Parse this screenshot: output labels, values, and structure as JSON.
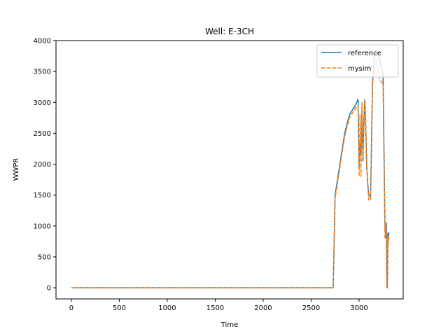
{
  "chart_data": {
    "type": "line",
    "title": "Well: E-3CH",
    "xlabel": "Time",
    "ylabel": "WWPR",
    "xlim": [
      -160,
      3460
    ],
    "ylim": [
      -180,
      4000
    ],
    "xticks": [
      0,
      500,
      1000,
      1500,
      2000,
      2500,
      3000
    ],
    "yticks": [
      0,
      500,
      1000,
      1500,
      2000,
      2500,
      3000,
      3500,
      4000
    ],
    "grid": false,
    "legend_position": "upper right",
    "series": [
      {
        "name": "reference",
        "color": "#1f77b4",
        "style": "solid",
        "x": [
          0,
          500,
          1000,
          1500,
          2000,
          2500,
          2700,
          2730,
          2750,
          2800,
          2850,
          2900,
          2960,
          2990,
          3000,
          3010,
          3020,
          3030,
          3040,
          3050,
          3060,
          3070,
          3080,
          3090,
          3100,
          3120,
          3140,
          3160,
          3180,
          3200,
          3220,
          3250,
          3270,
          3280,
          3285,
          3290,
          3295,
          3300,
          3305,
          3310
        ],
        "y": [
          0,
          0,
          0,
          0,
          0,
          0,
          0,
          0,
          1500,
          2000,
          2500,
          2800,
          2950,
          3050,
          1950,
          2350,
          2150,
          2850,
          2050,
          2700,
          3050,
          2600,
          1950,
          1700,
          1500,
          1460,
          3300,
          3750,
          3800,
          3780,
          3650,
          3450,
          1000,
          800,
          1050,
          0,
          0,
          880,
          750,
          900
        ]
      },
      {
        "name": "mysim",
        "color": "#ff7f0e",
        "style": "dashed",
        "x": [
          0,
          500,
          1000,
          1500,
          2000,
          2500,
          2700,
          2730,
          2750,
          2800,
          2850,
          2900,
          2960,
          2990,
          3000,
          3010,
          3020,
          3030,
          3040,
          3050,
          3060,
          3070,
          3080,
          3090,
          3100,
          3120,
          3140,
          3160,
          3180,
          3200,
          3220,
          3250,
          3270,
          3280,
          3285,
          3290,
          3295,
          3300,
          3305,
          3310
        ],
        "y": [
          0,
          0,
          0,
          0,
          0,
          0,
          0,
          0,
          1450,
          1950,
          2450,
          2750,
          2900,
          2950,
          1800,
          2800,
          1800,
          3000,
          2100,
          2550,
          3050,
          2650,
          1950,
          1650,
          1420,
          1420,
          3250,
          3700,
          3720,
          3500,
          3350,
          3300,
          800,
          1000,
          900,
          0,
          50,
          800,
          700,
          850
        ]
      }
    ]
  }
}
